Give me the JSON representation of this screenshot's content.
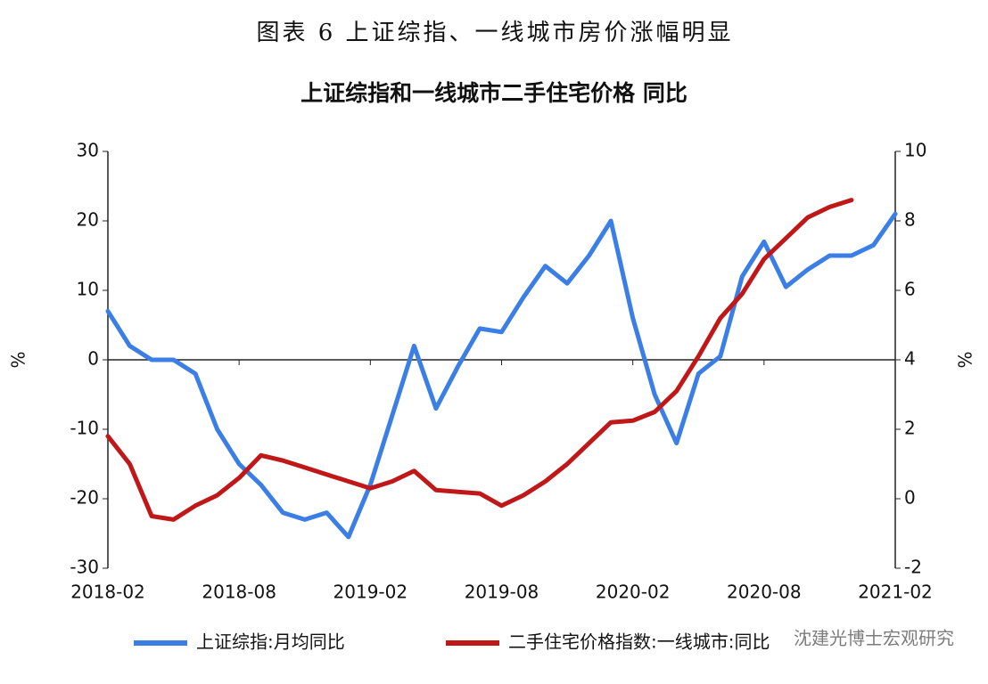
{
  "heading": "图表 6 上证综指、一线城市房价涨幅明显",
  "chart_data": {
    "type": "line",
    "title": "上证综指和一线城市二手住宅价格 同比",
    "y_label": "%",
    "y2_label": "%",
    "categories": [
      "2018-02",
      null,
      null,
      null,
      null,
      null,
      "2018-08",
      null,
      null,
      null,
      null,
      null,
      "2019-02",
      null,
      null,
      null,
      null,
      null,
      "2019-08",
      null,
      null,
      null,
      null,
      null,
      "2020-02",
      null,
      null,
      null,
      null,
      null,
      "2020-08",
      null,
      null,
      null,
      null,
      null,
      "2021-02"
    ],
    "ylim": [
      -30,
      30
    ],
    "yticks": [
      -30,
      -20,
      -10,
      0,
      10,
      20,
      30
    ],
    "y2lim": [
      -2,
      10
    ],
    "y2ticks": [
      -2,
      0,
      2,
      4,
      6,
      8,
      10
    ],
    "series": [
      {
        "name": "上证综指:月均同比",
        "color": "#3a7ee6",
        "values": [
          7,
          2,
          0,
          0,
          -2,
          -10,
          -15,
          -18,
          -22,
          -23,
          -22,
          -25.5,
          -18,
          -8,
          2,
          -7,
          -1,
          4.5,
          4,
          9,
          13.5,
          11,
          15,
          20,
          6,
          -5,
          -12,
          -2,
          0.5,
          12,
          17,
          10.5,
          13,
          15,
          15,
          16.5,
          21
        ]
      },
      {
        "name": "二手住宅价格指数:一线城市:同比",
        "color": "#c01818",
        "axis": "y2",
        "values": [
          1.8,
          1.0,
          -0.5,
          -0.6,
          -0.2,
          0.1,
          0.6,
          1.25,
          1.1,
          0.9,
          0.7,
          0.5,
          0.3,
          0.5,
          0.8,
          0.25,
          0.2,
          0.15,
          -0.2,
          0.1,
          0.5,
          1.0,
          1.6,
          2.2,
          2.25,
          2.5,
          3.1,
          4.1,
          5.2,
          5.9,
          6.9,
          7.5,
          8.1,
          8.4,
          8.6,
          null,
          null
        ]
      }
    ],
    "watermark": "沈建光博士宏观研究"
  }
}
